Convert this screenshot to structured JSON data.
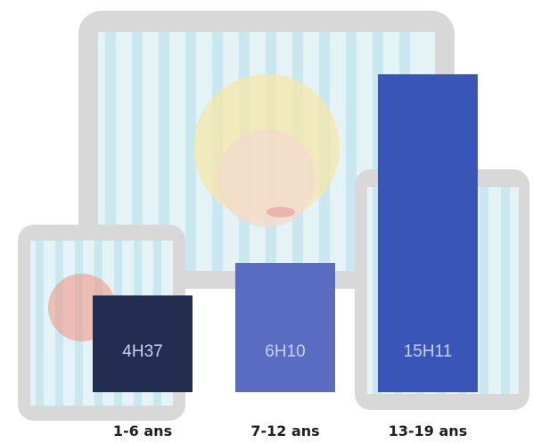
{
  "chart_data": {
    "type": "bar",
    "categories": [
      "1-6 ans",
      "7-12 ans",
      "13-19 ans"
    ],
    "values": [
      4.62,
      6.17,
      15.18
    ],
    "value_labels": [
      "4H37",
      "6H10",
      "15H11"
    ],
    "bar_colors": [
      "#232d52",
      "#5a6cc2",
      "#3a55b8"
    ],
    "ylim": [
      0,
      16
    ],
    "grid": false,
    "legend": "none"
  },
  "illustration": {
    "device_frame_color": "#d8d8d8",
    "screen_color": "#e3f3f6",
    "stripe_color": "#c9e7ee"
  }
}
